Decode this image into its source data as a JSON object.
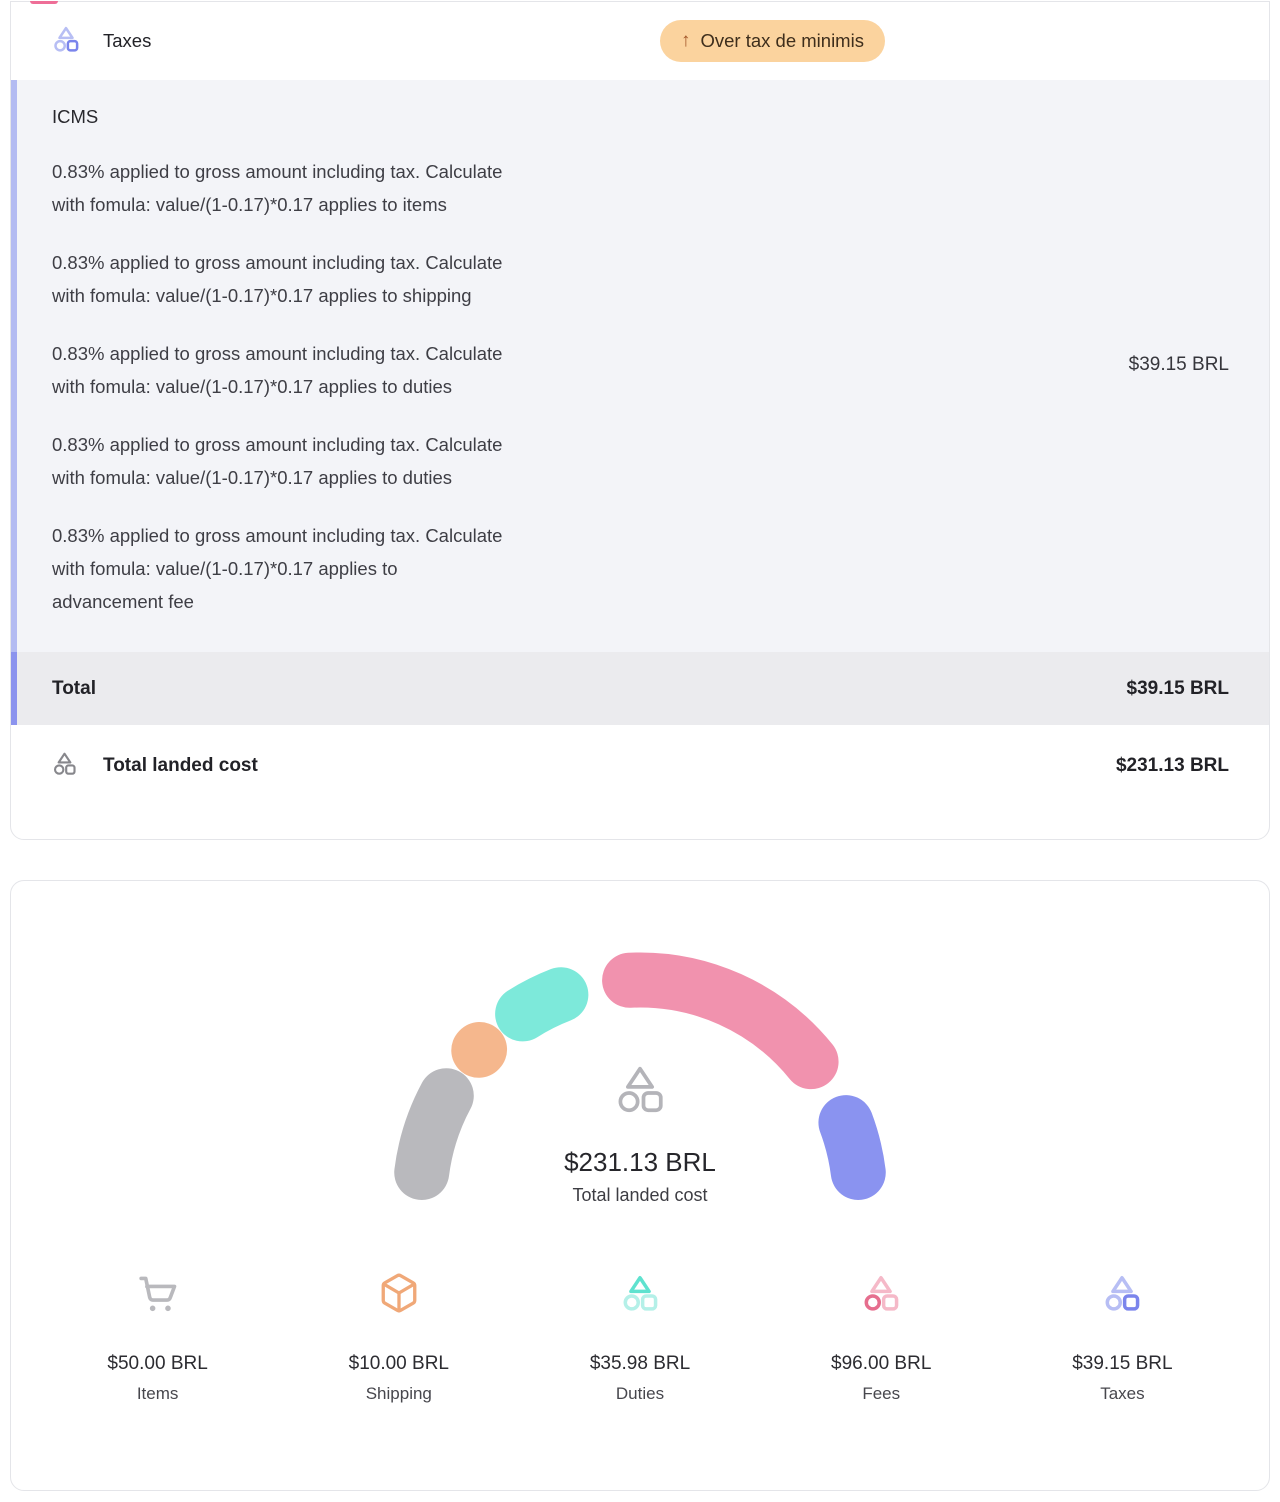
{
  "tax_card": {
    "header": {
      "title": "Taxes",
      "badge": {
        "arrow": "↑",
        "label": "Over tax de minimis",
        "bg": "#fbd39e",
        "arrow_color": "#a4582a"
      }
    },
    "icms": {
      "title": "ICMS",
      "lines": [
        "0.83% applied to gross amount including tax. Calculate\nwith fomula: value/(1-0.17)*0.17 applies to items",
        "0.83% applied to gross amount including tax. Calculate\nwith fomula: value/(1-0.17)*0.17 applies to shipping",
        "0.83% applied to gross amount including tax. Calculate\nwith fomula: value/(1-0.17)*0.17 applies to duties",
        "0.83% applied to gross amount including tax. Calculate\nwith fomula: value/(1-0.17)*0.17 applies to duties",
        "0.83% applied to gross amount including tax. Calculate\nwith fomula: value/(1-0.17)*0.17 applies to\nadvancement fee"
      ],
      "amount": "$39.15 BRL",
      "accent_strip": "#b3bbf2",
      "background": "#f3f4f8"
    },
    "total": {
      "label": "Total",
      "amount": "$39.15 BRL",
      "accent_strip": "#8b93ee",
      "background": "#ebebee"
    },
    "landed": {
      "label": "Total landed cost",
      "amount": "$231.13 BRL"
    }
  },
  "chart_data": {
    "type": "gauge",
    "subtype": "semicircle-donut",
    "categories": [
      "Items",
      "Shipping",
      "Duties",
      "Fees",
      "Taxes"
    ],
    "values": [
      50.0,
      10.0,
      35.98,
      96.0,
      39.15
    ],
    "value_labels": [
      "$50.00 BRL",
      "$10.00 BRL",
      "$35.98 BRL",
      "$96.00 BRL",
      "$39.15 BRL"
    ],
    "colors": [
      "#b9b9bd",
      "#f5b78d",
      "#7de9da",
      "#f192ae",
      "#8a93f0"
    ],
    "total": 231.13,
    "currency": "BRL",
    "center_value": "$231.13 BRL",
    "center_label": "Total landed cost",
    "arc_degrees": 180,
    "legend_position": "bottom"
  },
  "legend": {
    "items": [
      {
        "icon": "cart-icon",
        "strong": "#b9b9bd",
        "soft": "#b9b9bd",
        "emphasis": "none",
        "value": "$50.00 BRL",
        "label": "Items"
      },
      {
        "icon": "package-icon",
        "strong": "#f0a878",
        "soft": "#f0a878",
        "emphasis": "none",
        "value": "$10.00 BRL",
        "label": "Shipping"
      },
      {
        "icon": "shapes-icon",
        "strong": "#5fe2cf",
        "soft": "#b4f0e8",
        "emphasis": "triangle",
        "value": "$35.98 BRL",
        "label": "Duties"
      },
      {
        "icon": "shapes-icon",
        "strong": "#e66e8e",
        "soft": "#f5b9c8",
        "emphasis": "circle",
        "value": "$96.00 BRL",
        "label": "Fees"
      },
      {
        "icon": "shapes-icon",
        "strong": "#7b85ec",
        "soft": "#b7bef4",
        "emphasis": "square",
        "value": "$39.15 BRL",
        "label": "Taxes"
      }
    ]
  },
  "icons": {
    "taxes_header": {
      "kind": "shapes",
      "strong": "#7b85ec",
      "soft": "#b7bef4",
      "emphasis": "square",
      "size": 30,
      "stroke": 2
    },
    "landed_cost": {
      "kind": "shapes",
      "strong": "#87878c",
      "soft": "#87878c",
      "emphasis": "none",
      "size": 27,
      "stroke": 1.9
    },
    "gauge_center": {
      "kind": "shapes",
      "strong": "#b4b4b9",
      "soft": "#b4b4b9",
      "emphasis": "none",
      "size": 56,
      "stroke": 1.6
    }
  }
}
